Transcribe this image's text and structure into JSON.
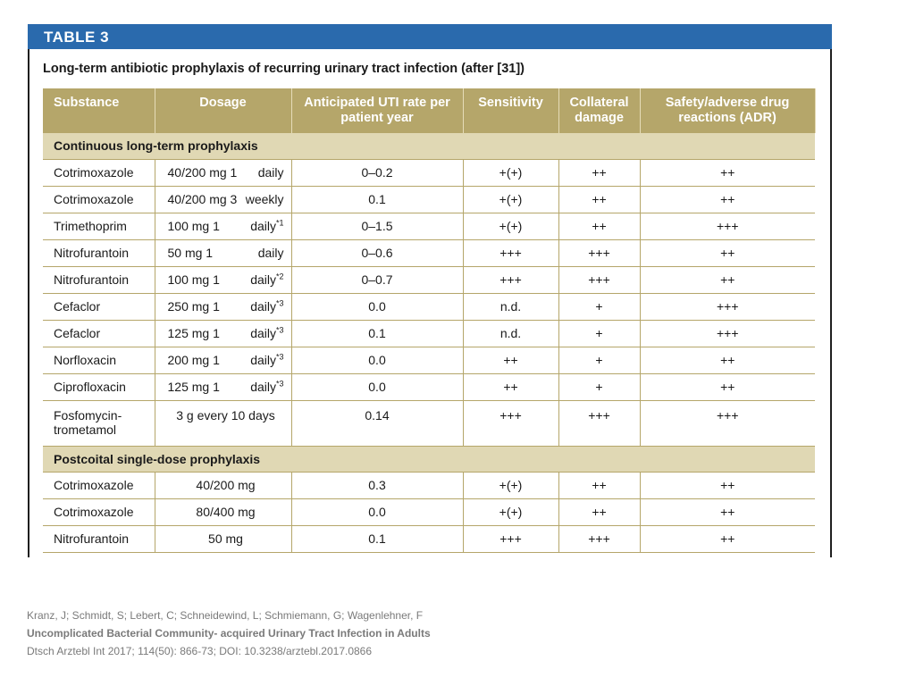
{
  "table_label": "TABLE 3",
  "caption": "Long-term antibiotic prophylaxis of recurring urinary tract infection (after [31])",
  "headers": {
    "substance": "Substance",
    "dosage": "Dosage",
    "rate": "Anticipated UTI rate per patient year",
    "sensitivity": "Sensitivity",
    "collateral": "Collateral damage",
    "safety": "Safety/adverse drug reactions (ADR)"
  },
  "sections": [
    {
      "title": "Continuous long-term prophylaxis",
      "rows": [
        {
          "substance": "Cotrimoxazole",
          "dose": "40/200 mg 1",
          "freq": "daily",
          "sup": "",
          "rate": "0–0.2",
          "sensitivity": "+(+)",
          "collateral": "++",
          "safety": "++"
        },
        {
          "substance": "Cotrimoxazole",
          "dose": "40/200 mg 3",
          "freq": "weekly",
          "sup": "",
          "rate": "0.1",
          "sensitivity": "+(+)",
          "collateral": "++",
          "safety": "++"
        },
        {
          "substance": "Trimethoprim",
          "dose": "100 mg 1",
          "freq": "daily",
          "sup": "*1",
          "rate": "0–1.5",
          "sensitivity": "+(+)",
          "collateral": "++",
          "safety": "+++"
        },
        {
          "substance": "Nitrofurantoin",
          "dose": "50 mg 1",
          "freq": "daily",
          "sup": "",
          "rate": "0–0.6",
          "sensitivity": "+++",
          "collateral": "+++",
          "safety": "++"
        },
        {
          "substance": "Nitrofurantoin",
          "dose": "100 mg 1",
          "freq": "daily",
          "sup": "*2",
          "rate": "0–0.7",
          "sensitivity": "+++",
          "collateral": "+++",
          "safety": "++"
        },
        {
          "substance": "Cefaclor",
          "dose": "250 mg 1",
          "freq": "daily",
          "sup": "*3",
          "rate": "0.0",
          "sensitivity": "n.d.",
          "collateral": "+",
          "safety": "+++"
        },
        {
          "substance": "Cefaclor",
          "dose": "125 mg 1",
          "freq": "daily",
          "sup": "*3",
          "rate": "0.1",
          "sensitivity": "n.d.",
          "collateral": "+",
          "safety": "+++"
        },
        {
          "substance": "Norfloxacin",
          "dose": "200 mg 1",
          "freq": "daily",
          "sup": "*3",
          "rate": "0.0",
          "sensitivity": "++",
          "collateral": "+",
          "safety": "++"
        },
        {
          "substance": "Ciprofloxacin",
          "dose": "125 mg 1",
          "freq": "daily",
          "sup": "*3",
          "rate": "0.0",
          "sensitivity": "++",
          "collateral": "+",
          "safety": "++"
        },
        {
          "substance": "Fosfomycin-trometamol",
          "dose": "3 g every 10 days",
          "freq": "",
          "sup": "",
          "rate": "0.14",
          "sensitivity": "+++",
          "collateral": "+++",
          "safety": "+++"
        }
      ]
    },
    {
      "title": "Postcoital single-dose prophylaxis",
      "rows": [
        {
          "substance": "Cotrimoxazole",
          "dose": "40/200 mg",
          "freq": "",
          "sup": "",
          "rate": "0.3",
          "sensitivity": "+(+)",
          "collateral": "++",
          "safety": "++"
        },
        {
          "substance": "Cotrimoxazole",
          "dose": "80/400 mg",
          "freq": "",
          "sup": "",
          "rate": "0.0",
          "sensitivity": "+(+)",
          "collateral": "++",
          "safety": "++"
        },
        {
          "substance": "Nitrofurantoin",
          "dose": "50 mg",
          "freq": "",
          "sup": "",
          "rate": "0.1",
          "sensitivity": "+++",
          "collateral": "+++",
          "safety": "++"
        }
      ]
    }
  ],
  "citation": {
    "authors": "Kranz, J; Schmidt, S; Lebert, C; Schneidewind, L; Schmiemann, G; Wagenlehner, F",
    "title": "Uncomplicated Bacterial Community- acquired Urinary Tract Infection in Adults",
    "source": "Dtsch Arztebl Int 2017; 114(50): 866-73; DOI: 10.3238/arztebl.2017.0866"
  },
  "colors": {
    "banner": "#2a6aad",
    "header": "#b5a66a",
    "section": "#e0d8b4"
  }
}
